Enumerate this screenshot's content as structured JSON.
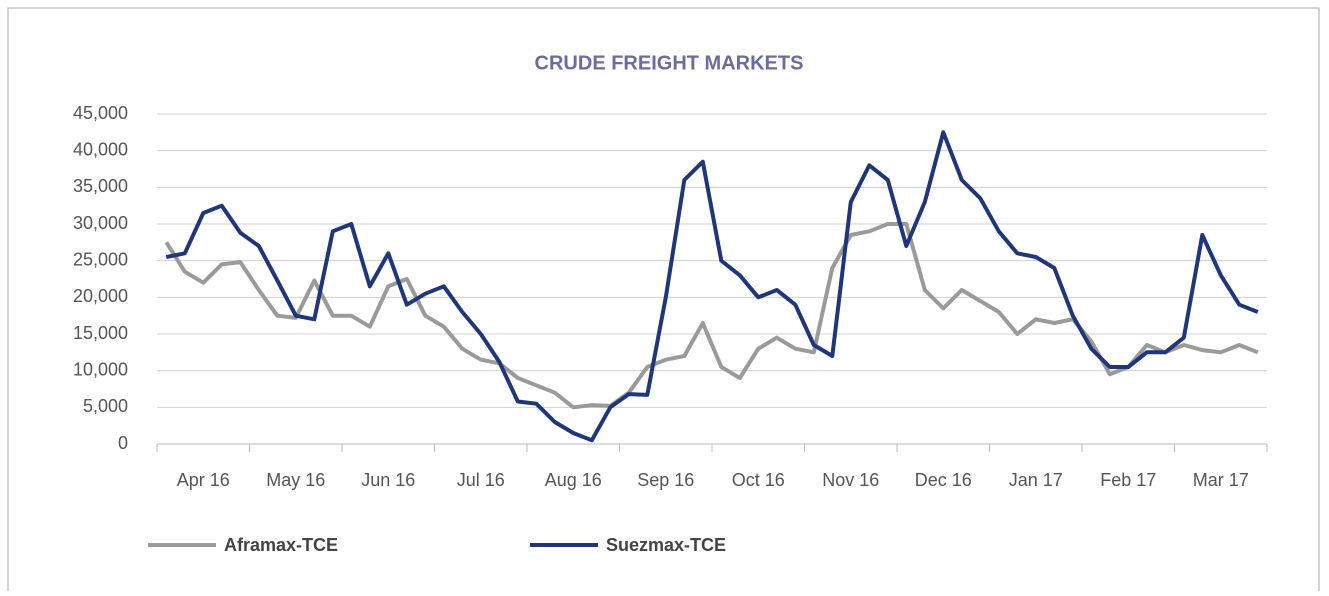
{
  "chart_data": {
    "type": "line",
    "title": "CRUDE FREIGHT MARKETS",
    "categories": [
      null,
      null,
      "Apr 16",
      null,
      null,
      null,
      null,
      "May 16",
      null,
      null,
      null,
      null,
      "Jun 16",
      null,
      null,
      null,
      null,
      "Jul 16",
      null,
      null,
      null,
      null,
      "Aug 16",
      null,
      null,
      null,
      null,
      "Sep 16",
      null,
      null,
      null,
      null,
      "Oct 16",
      null,
      null,
      null,
      null,
      "Nov 16",
      null,
      null,
      null,
      null,
      "Dec 16",
      null,
      null,
      null,
      null,
      "Jan 17",
      null,
      null,
      null,
      null,
      "Feb 17",
      null,
      null,
      null,
      null,
      "Mar 17",
      null,
      null
    ],
    "series": [
      {
        "name": "Aframax-TCE",
        "color": "#9a9a9a",
        "values": [
          27500,
          23500,
          22000,
          24500,
          24800,
          21000,
          17500,
          17200,
          22300,
          17500,
          17500,
          16000,
          21500,
          22500,
          17500,
          16000,
          13000,
          11500,
          11000,
          9000,
          8000,
          7000,
          5000,
          5300,
          5200,
          7000,
          10500,
          11500,
          12000,
          16500,
          10500,
          9000,
          13000,
          14500,
          13000,
          12500,
          24000,
          28500,
          29000,
          30000,
          30000,
          21000,
          18500,
          21000,
          19500,
          18000,
          15000,
          17000,
          16500,
          17000,
          14000,
          9500,
          10500,
          13500,
          12500,
          13500,
          12800,
          12500,
          13500,
          12500
        ]
      },
      {
        "name": "Suezmax-TCE",
        "color": "#1f3778",
        "values": [
          25500,
          26000,
          31500,
          32500,
          28800,
          27000,
          22300,
          17500,
          17000,
          29000,
          30000,
          21500,
          26000,
          19000,
          20500,
          21500,
          18000,
          15000,
          11200,
          5800,
          5500,
          3000,
          1500,
          500,
          5000,
          6800,
          6700,
          20000,
          36000,
          38500,
          25000,
          23000,
          20000,
          21000,
          19000,
          13500,
          12000,
          33000,
          38000,
          36000,
          27000,
          33000,
          42500,
          36000,
          33500,
          29000,
          26000,
          25500,
          24000,
          17500,
          13000,
          10500,
          10500,
          12500,
          12500,
          14500,
          28500,
          23000,
          19000,
          18000
        ]
      }
    ],
    "ylim": [
      0,
      45000
    ],
    "yticks": [
      0,
      {
        "value": 5000,
        "label": "5,000"
      },
      {
        "value": 10000,
        "label": "10,000"
      },
      {
        "value": 15000,
        "label": "15,000"
      },
      {
        "value": 20000,
        "label": "20,000"
      },
      {
        "value": 25000,
        "label": "25,000"
      },
      {
        "value": 30000,
        "label": "30,000"
      },
      {
        "value": 35000,
        "label": "35,000"
      },
      {
        "value": 40000,
        "label": "40,000"
      },
      {
        "value": 45000,
        "label": "45,000"
      }
    ],
    "grid": true
  }
}
